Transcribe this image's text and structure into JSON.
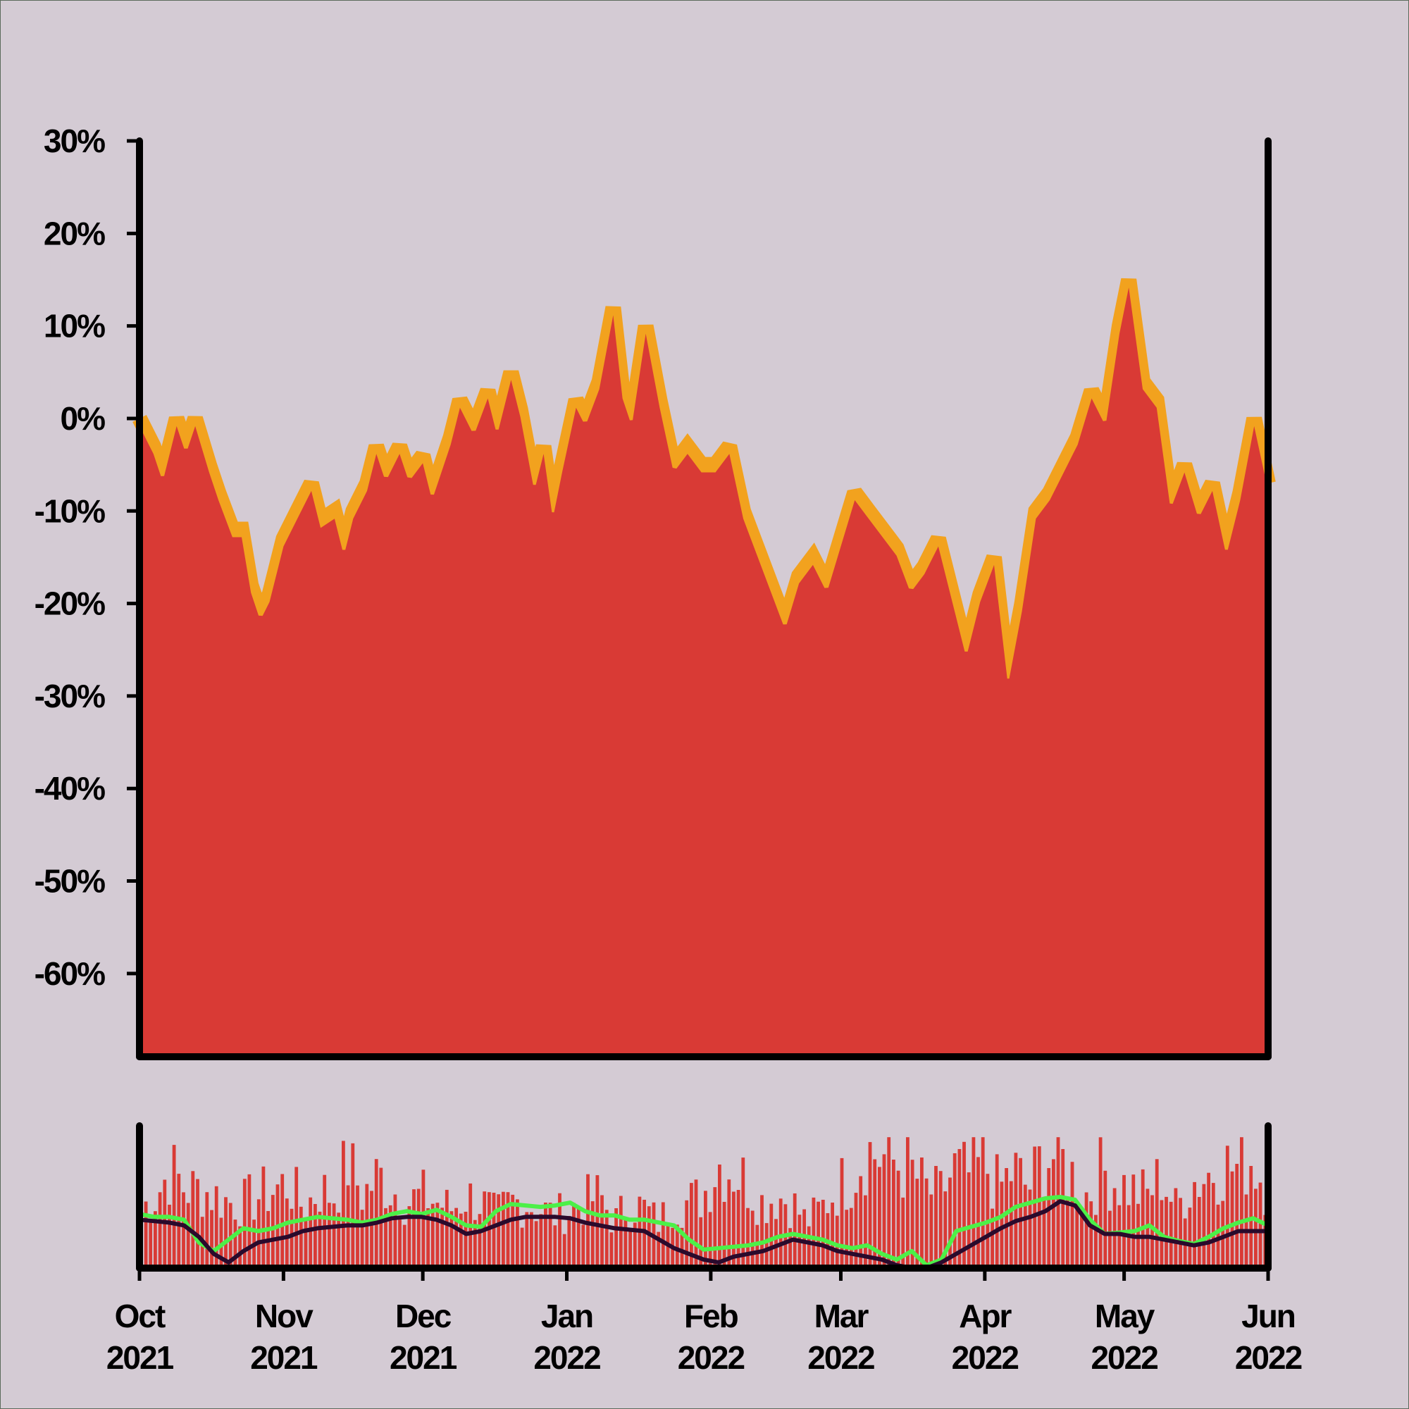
{
  "chart_data": [
    {
      "type": "area",
      "title": "",
      "xlabel": "",
      "ylabel": "",
      "ylim": [
        -69,
        30
      ],
      "xlim": [
        "2021-10-01",
        "2022-06-01"
      ],
      "ytick_labels": [
        "30%",
        "20%",
        "10%",
        "0%",
        "-10%",
        "-20%",
        "-30%",
        "-40%",
        "-50%",
        "-60%"
      ],
      "ytick_values": [
        30,
        20,
        10,
        0,
        -10,
        -20,
        -30,
        -40,
        -50,
        -60
      ],
      "grid": false,
      "legend": "none",
      "colors": {
        "fill": "#d93a35",
        "band": "#f2a21e",
        "background": "#d4cbd4",
        "axis": "#000000"
      },
      "series": [
        {
          "points": [
            [
              "2021-10-01",
              0
            ],
            [
              "2021-10-04",
              -3
            ],
            [
              "2021-10-06",
              -6
            ],
            [
              "2021-10-09",
              0
            ],
            [
              "2021-10-11",
              -3
            ],
            [
              "2021-10-13",
              0
            ],
            [
              "2021-10-16",
              -5
            ],
            [
              "2021-10-18",
              -8
            ],
            [
              "2021-10-21",
              -12
            ],
            [
              "2021-10-23",
              -12
            ],
            [
              "2021-10-25",
              -18
            ],
            [
              "2021-10-27",
              -21
            ],
            [
              "2021-10-29",
              -19
            ],
            [
              "2021-11-01",
              -13
            ],
            [
              "2021-11-04",
              -10
            ],
            [
              "2021-11-07",
              -7
            ],
            [
              "2021-11-09",
              -11
            ],
            [
              "2021-11-12",
              -10
            ],
            [
              "2021-11-14",
              -14
            ],
            [
              "2021-11-16",
              -10
            ],
            [
              "2021-11-19",
              -7
            ],
            [
              "2021-11-21",
              -3
            ],
            [
              "2021-11-23",
              -6
            ],
            [
              "2021-11-26",
              -3
            ],
            [
              "2021-11-28",
              -6
            ],
            [
              "2021-12-01",
              -4
            ],
            [
              "2021-12-03",
              -8
            ],
            [
              "2021-12-05",
              -5
            ],
            [
              "2021-12-07",
              -2
            ],
            [
              "2021-12-09",
              2
            ],
            [
              "2021-12-12",
              -1
            ],
            [
              "2021-12-15",
              3
            ],
            [
              "2021-12-17",
              -1
            ],
            [
              "2021-12-20",
              5
            ],
            [
              "2021-12-22",
              1
            ],
            [
              "2021-12-25",
              -7
            ],
            [
              "2021-12-27",
              -3
            ],
            [
              "2021-12-29",
              -10
            ],
            [
              "2021-12-31",
              -5
            ],
            [
              "2022-01-03",
              2
            ],
            [
              "2022-01-05",
              0
            ],
            [
              "2022-01-08",
              4
            ],
            [
              "2022-01-11",
              12
            ],
            [
              "2022-01-13",
              3
            ],
            [
              "2022-01-15",
              0
            ],
            [
              "2022-01-18",
              10
            ],
            [
              "2022-01-21",
              2
            ],
            [
              "2022-01-24",
              -5
            ],
            [
              "2022-01-27",
              -3
            ],
            [
              "2022-01-30",
              -5
            ],
            [
              "2022-02-02",
              -5
            ],
            [
              "2022-02-05",
              -3
            ],
            [
              "2022-02-08",
              -10
            ],
            [
              "2022-02-11",
              -14
            ],
            [
              "2022-02-14",
              -18
            ],
            [
              "2022-02-17",
              -22
            ],
            [
              "2022-02-20",
              -17
            ],
            [
              "2022-02-23",
              -15
            ],
            [
              "2022-02-26",
              -18
            ],
            [
              "2022-03-01",
              -13
            ],
            [
              "2022-03-04",
              -8
            ],
            [
              "2022-03-07",
              -10
            ],
            [
              "2022-03-10",
              -12
            ],
            [
              "2022-03-13",
              -14
            ],
            [
              "2022-03-16",
              -18
            ],
            [
              "2022-03-19",
              -16
            ],
            [
              "2022-03-22",
              -13
            ],
            [
              "2022-03-25",
              -19
            ],
            [
              "2022-03-28",
              -25
            ],
            [
              "2022-03-31",
              -19
            ],
            [
              "2022-04-03",
              -15
            ],
            [
              "2022-04-06",
              -28
            ],
            [
              "2022-04-09",
              -20
            ],
            [
              "2022-04-12",
              -10
            ],
            [
              "2022-04-15",
              -8
            ],
            [
              "2022-04-18",
              -5
            ],
            [
              "2022-04-21",
              -2
            ],
            [
              "2022-04-24",
              3
            ],
            [
              "2022-04-27",
              0
            ],
            [
              "2022-04-30",
              10
            ],
            [
              "2022-05-02",
              15
            ],
            [
              "2022-05-05",
              4
            ],
            [
              "2022-05-08",
              2
            ],
            [
              "2022-05-11",
              -9
            ],
            [
              "2022-05-14",
              -5
            ],
            [
              "2022-05-17",
              -10
            ],
            [
              "2022-05-20",
              -7
            ],
            [
              "2022-05-23",
              -14
            ],
            [
              "2022-05-26",
              -8
            ],
            [
              "2022-05-29",
              0
            ],
            [
              "2022-06-01",
              -7
            ]
          ]
        }
      ]
    },
    {
      "type": "bar",
      "title": "",
      "xlabel": "",
      "ylabel": "",
      "xlim": [
        "2021-10-01",
        "2022-06-01"
      ],
      "xtick_labels": [
        {
          "line1": "Oct",
          "line2": "2021"
        },
        {
          "line1": "Nov",
          "line2": "2021"
        },
        {
          "line1": "Dec",
          "line2": "2021"
        },
        {
          "line1": "Jan",
          "line2": "2022"
        },
        {
          "line1": "Feb",
          "line2": "2022"
        },
        {
          "line1": "Mar",
          "line2": "2022"
        },
        {
          "line1": "Apr",
          "line2": "2022"
        },
        {
          "line1": "May",
          "line2": "2022"
        },
        {
          "line1": "Jun",
          "line2": "2022"
        }
      ],
      "xtick_dates": [
        "2021-10-01",
        "2021-11-01",
        "2021-12-01",
        "2022-01-01",
        "2022-02-01",
        "2022-03-01",
        "2022-04-01",
        "2022-05-01",
        "2022-06-01"
      ],
      "grid": false,
      "legend": "none",
      "colors": {
        "bars": "#d93a35",
        "fast_line": "#4cf048",
        "slow_line": "#2a0a2c"
      },
      "bar_levels": [
        0.45,
        0.55,
        0.75,
        0.6,
        0.6,
        0.55,
        0.5,
        0.5,
        0.55,
        0.6,
        0.65,
        0.45,
        0.6,
        0.55,
        0.8,
        0.55,
        0.7,
        0.6,
        0.5,
        0.55,
        0.5,
        0.45,
        0.55,
        0.5,
        0.4,
        0.5,
        0.5,
        0.45,
        0.4,
        0.45,
        0.5,
        0.55,
        0.35,
        0.5,
        0.45,
        0.35,
        0.5,
        0.5,
        0.55,
        0.8,
        0.75,
        0.65,
        0.5,
        0.55,
        0.5,
        0.35,
        0.45,
        0.6,
        0.7,
        0.9,
        0.85,
        0.8,
        0.75,
        0.6,
        0.55,
        0.75,
        0.7,
        0.8,
        0.6,
        0.75,
        0.6,
        0.85,
        0.85,
        0.7,
        0.55,
        0.75,
        0.65,
        0.6,
        0.55,
        0.7,
        0.45,
        0.65,
        0.7,
        0.8,
        0.75,
        0.85,
        0.65
      ],
      "series": [
        {
          "name": "",
          "values": [
            0.38,
            0.36,
            0.36,
            0.34,
            0.18,
            0.12,
            0.2,
            0.28,
            0.26,
            0.28,
            0.32,
            0.34,
            0.36,
            0.35,
            0.34,
            0.32,
            0.34,
            0.38,
            0.4,
            0.38,
            0.41,
            0.36,
            0.3,
            0.29,
            0.4,
            0.45,
            0.44,
            0.43,
            0.44,
            0.46,
            0.4,
            0.37,
            0.37,
            0.34,
            0.34,
            0.32,
            0.3,
            0.2,
            0.13,
            0.14,
            0.15,
            0.16,
            0.18,
            0.22,
            0.24,
            0.22,
            0.2,
            0.16,
            0.14,
            0.16,
            0.1,
            0.06,
            0.12,
            0.02,
            0.06,
            0.26,
            0.29,
            0.32,
            0.36,
            0.43,
            0.46,
            0.49,
            0.5,
            0.48,
            0.34,
            0.24,
            0.25,
            0.26,
            0.3,
            0.22,
            0.19,
            0.17,
            0.22,
            0.28,
            0.32,
            0.35,
            0.3
          ]
        },
        {
          "name": "",
          "values": [
            0.34,
            0.33,
            0.32,
            0.3,
            0.22,
            0.1,
            0.04,
            0.12,
            0.18,
            0.2,
            0.22,
            0.26,
            0.28,
            0.29,
            0.3,
            0.3,
            0.32,
            0.35,
            0.36,
            0.36,
            0.34,
            0.3,
            0.24,
            0.26,
            0.3,
            0.34,
            0.36,
            0.36,
            0.36,
            0.35,
            0.32,
            0.3,
            0.28,
            0.27,
            0.26,
            0.2,
            0.14,
            0.1,
            0.06,
            0.04,
            0.08,
            0.1,
            0.12,
            0.16,
            0.2,
            0.18,
            0.16,
            0.12,
            0.1,
            0.08,
            0.06,
            0.02,
            0.0,
            0.0,
            0.04,
            0.1,
            0.16,
            0.22,
            0.28,
            0.33,
            0.36,
            0.4,
            0.47,
            0.44,
            0.3,
            0.24,
            0.24,
            0.22,
            0.22,
            0.2,
            0.18,
            0.16,
            0.18,
            0.22,
            0.26,
            0.26,
            0.26
          ]
        }
      ]
    }
  ]
}
